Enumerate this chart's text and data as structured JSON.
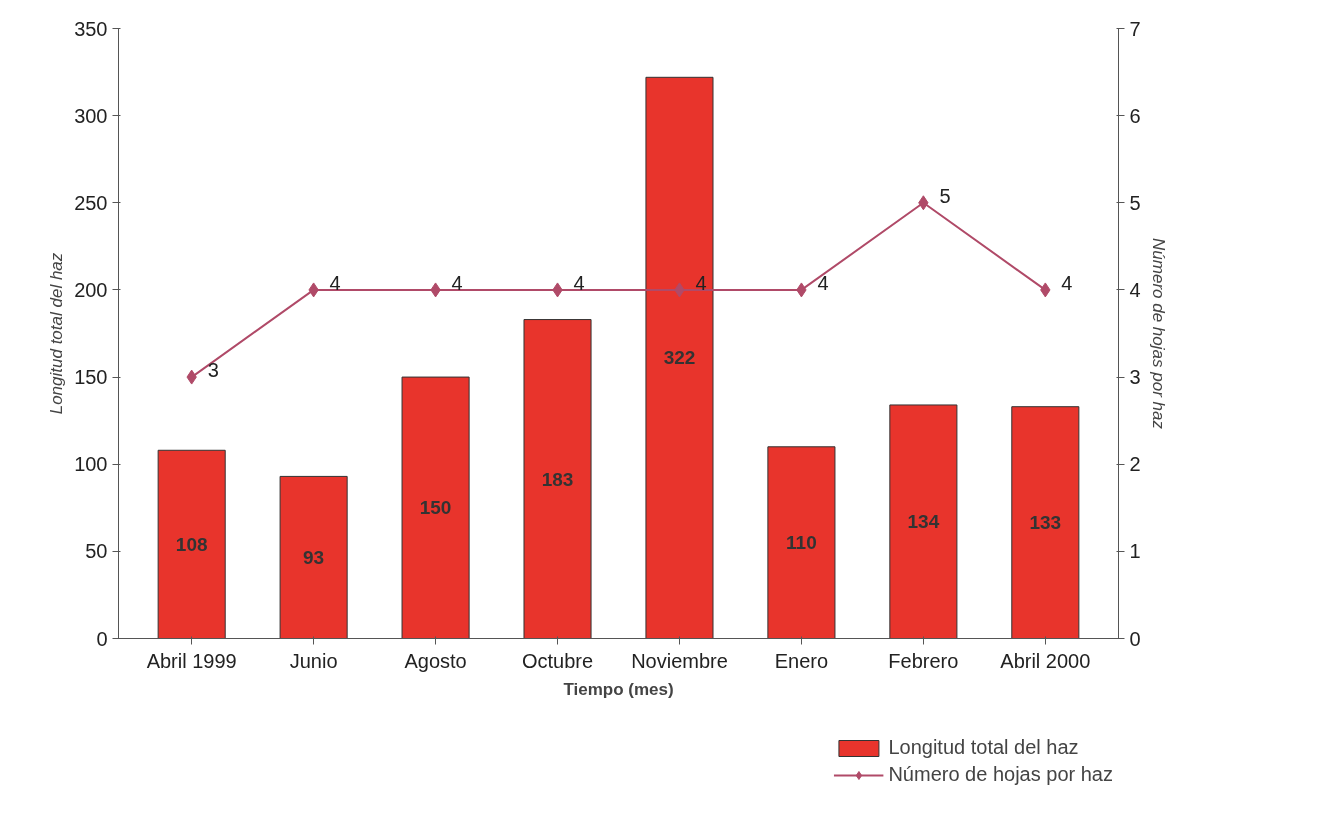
{
  "chart_data": {
    "type": "bar",
    "xlabel": "Tiempo (mes)",
    "ylabel": "Longitud total del haz",
    "y2label": "Número de hojas por haz",
    "categories": [
      "Abril 1999",
      "Junio",
      "Agosto",
      "Octubre",
      "Noviembre",
      "Enero",
      "Febrero",
      "Abril 2000"
    ],
    "series": [
      {
        "name": "Longitud total del haz",
        "color": "#e8342c",
        "values": [
          108,
          93,
          150,
          183,
          322,
          110,
          134,
          133
        ]
      },
      {
        "name": "Número de hojas por haz",
        "type": "line",
        "axis": "y2",
        "color": "#b04a68",
        "marker": "diamond",
        "values": [
          3,
          4,
          4,
          4,
          4,
          4,
          5,
          4
        ]
      }
    ],
    "ylim": [
      0,
      350
    ],
    "yticks": [
      0,
      50,
      100,
      150,
      200,
      250,
      300,
      350
    ],
    "y2lim": [
      0,
      7
    ],
    "y2ticks": [
      0,
      1,
      2,
      3,
      4,
      5,
      6,
      7
    ],
    "data_labels": true,
    "grid": false,
    "legend": "bottom right"
  }
}
